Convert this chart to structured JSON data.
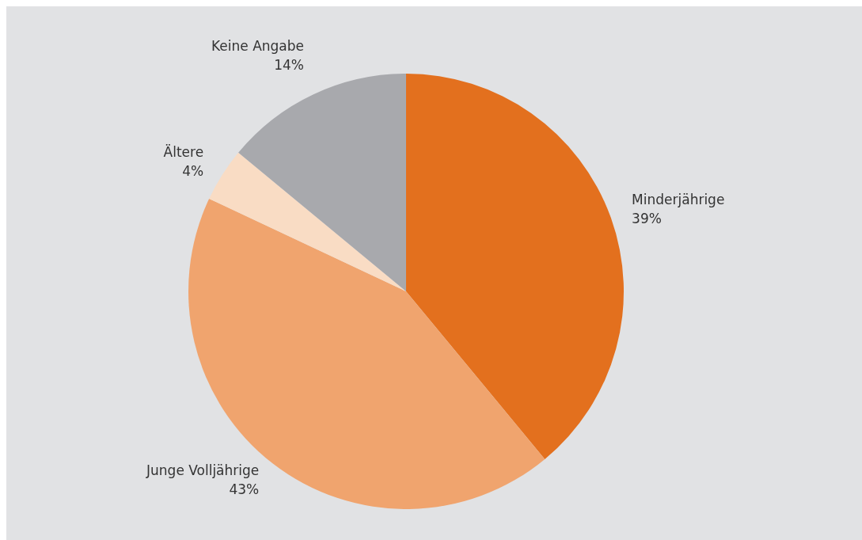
{
  "chart_data": {
    "type": "pie",
    "categories": [
      "Minderjährige",
      "Junge Volljährige",
      "Ältere",
      "Keine Angabe"
    ],
    "values": [
      39,
      43,
      4,
      14
    ],
    "colors": [
      "#e3701e",
      "#f0a46e",
      "#f9dcc4",
      "#a8a9ad"
    ],
    "value_labels": [
      "39%",
      "43%",
      "4%",
      "14%"
    ],
    "legend": false
  }
}
